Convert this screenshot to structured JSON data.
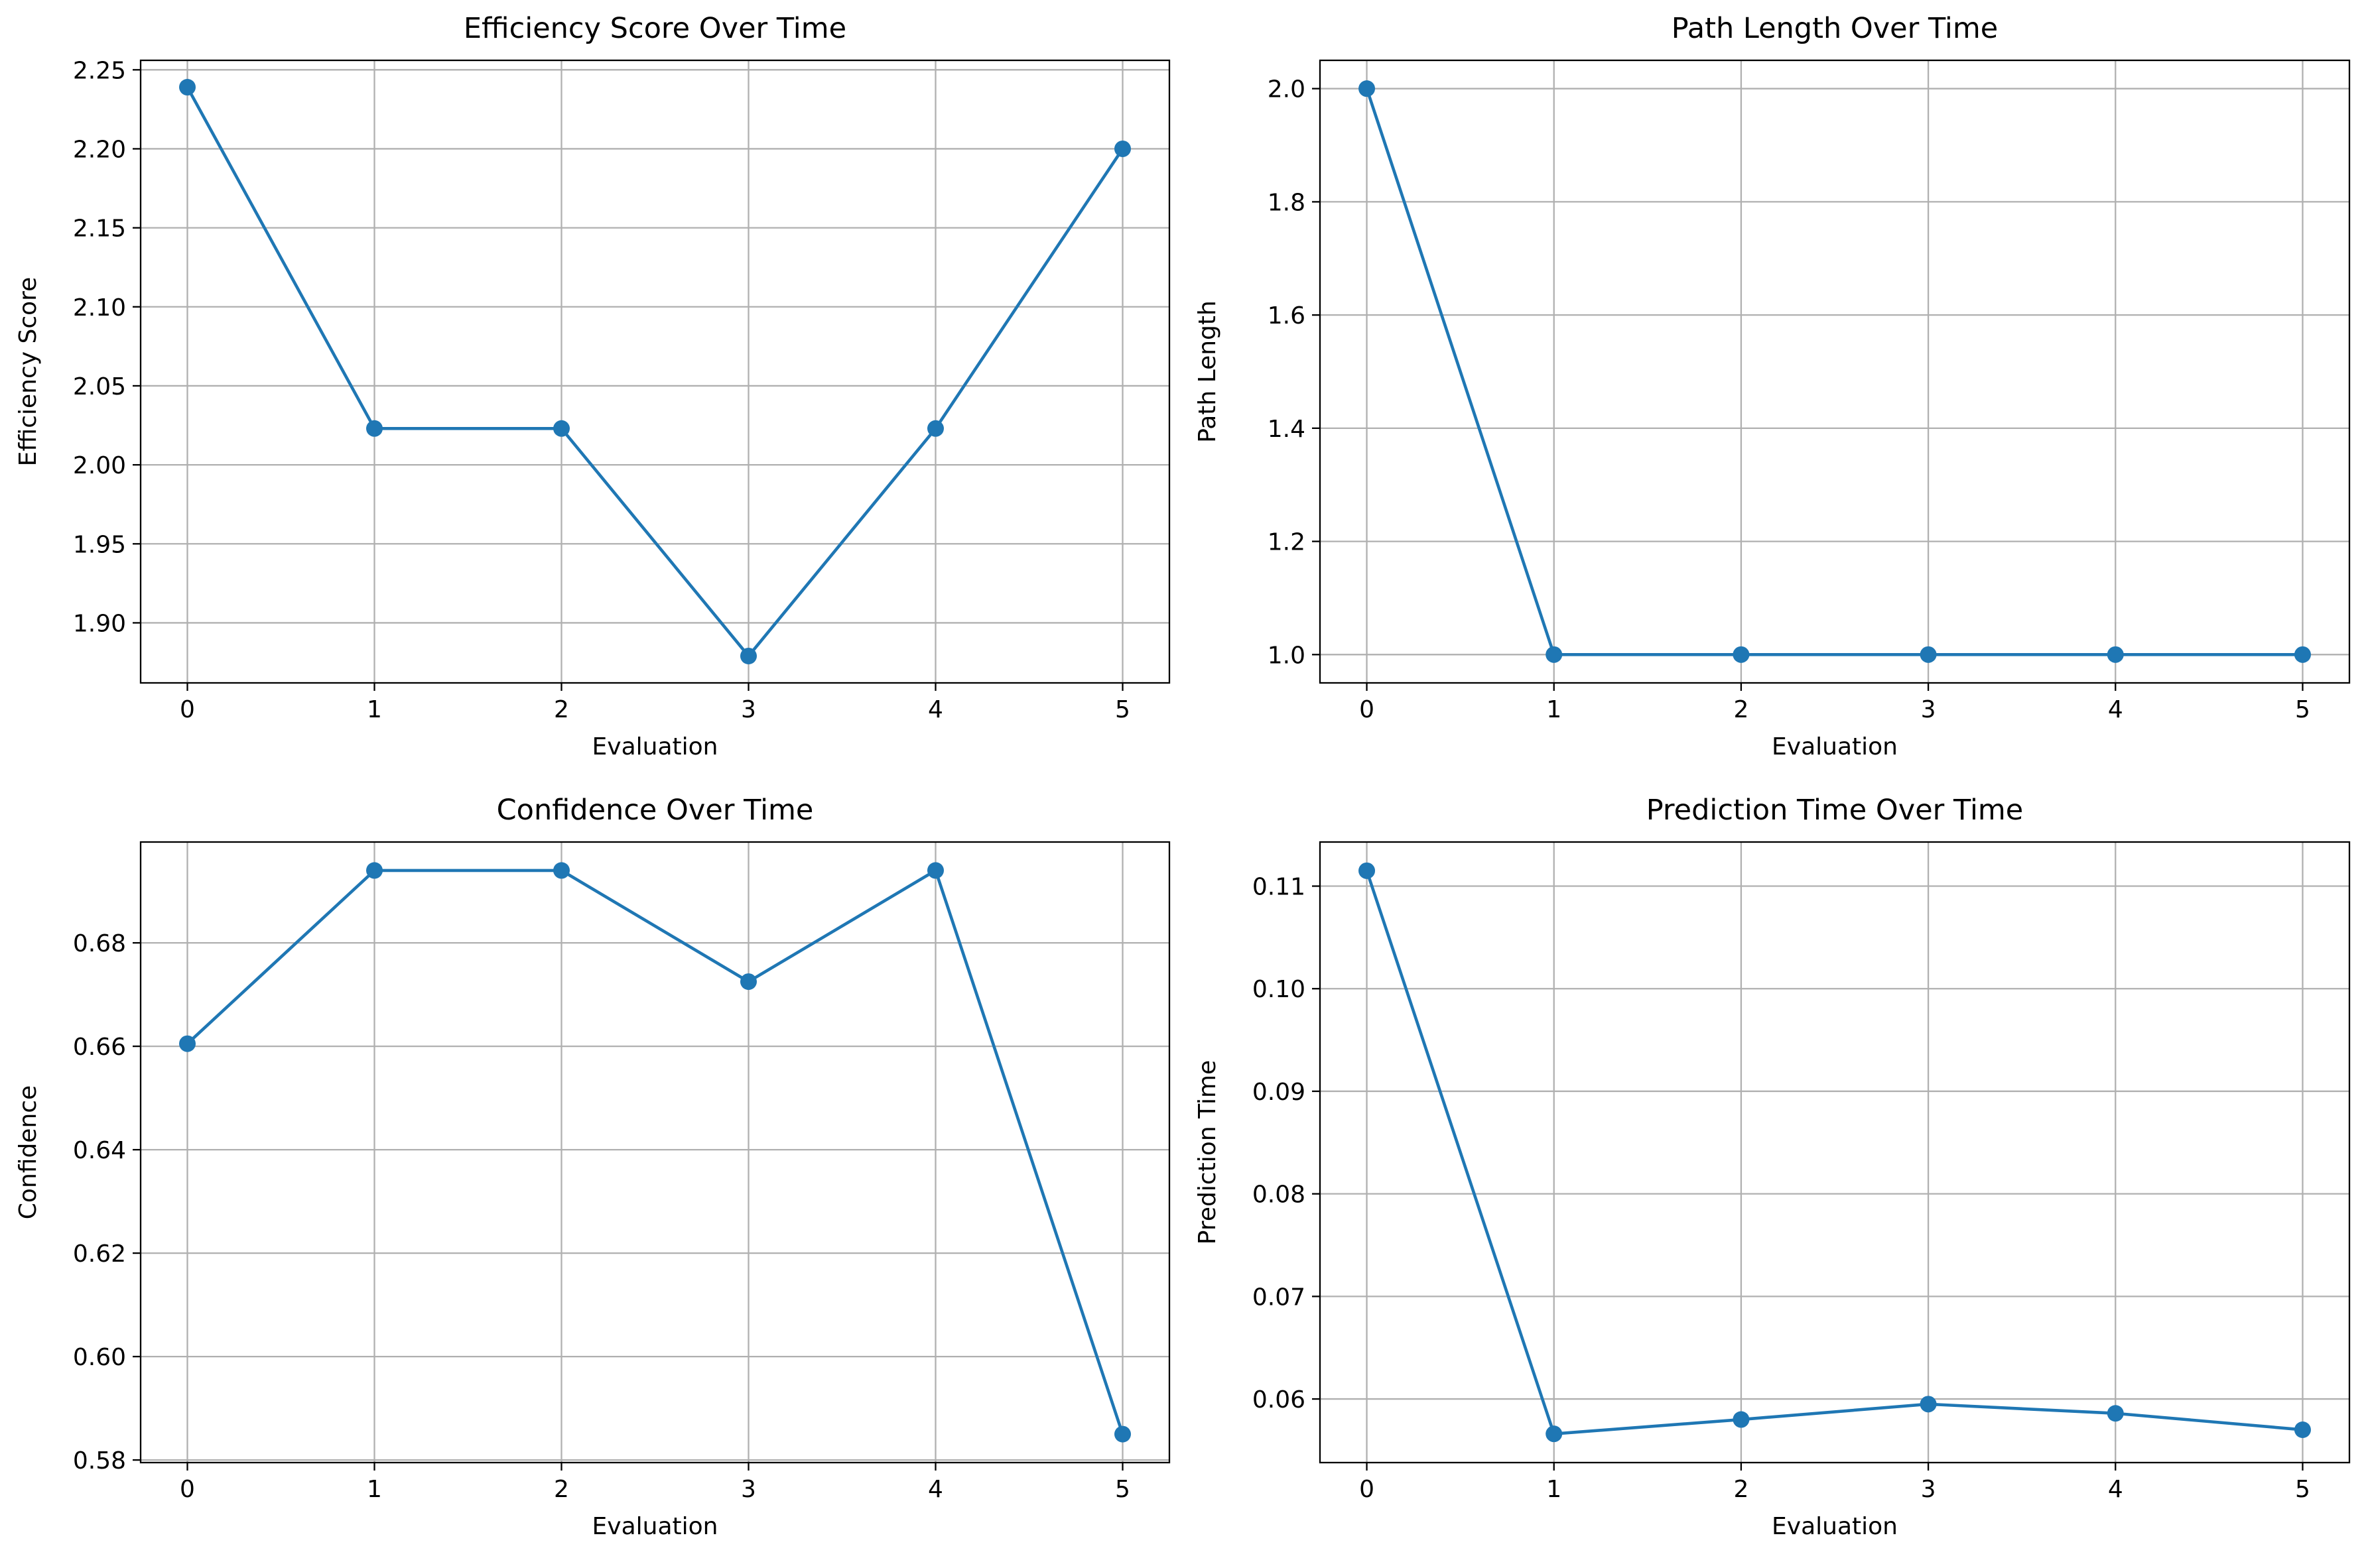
{
  "colors": {
    "series": "#1f77b4",
    "grid": "#b0b0b0",
    "axes": "#000000"
  },
  "chart_data": [
    {
      "type": "line",
      "title": "Efficiency Score Over Time",
      "xlabel": "Evaluation",
      "ylabel": "Efficiency Score",
      "x": [
        0,
        1,
        2,
        3,
        4,
        5
      ],
      "values": [
        2.239,
        2.023,
        2.023,
        1.879,
        2.023,
        2.2
      ],
      "xlim": [
        -0.25,
        5.25
      ],
      "ylim": [
        1.862,
        2.256
      ],
      "xticks": [
        0,
        1,
        2,
        3,
        4,
        5
      ],
      "xtick_labels": [
        "0",
        "1",
        "2",
        "3",
        "4",
        "5"
      ],
      "yticks": [
        1.9,
        1.95,
        2.0,
        2.05,
        2.1,
        2.15,
        2.2,
        2.25
      ],
      "ytick_labels": [
        "1.90",
        "1.95",
        "2.00",
        "2.05",
        "2.10",
        "2.15",
        "2.20",
        "2.25"
      ],
      "grid": true,
      "marker": "circle"
    },
    {
      "type": "line",
      "title": "Path Length Over Time",
      "xlabel": "Evaluation",
      "ylabel": "Path Length",
      "x": [
        0,
        1,
        2,
        3,
        4,
        5
      ],
      "values": [
        2.0,
        1.0,
        1.0,
        1.0,
        1.0,
        1.0
      ],
      "xlim": [
        -0.25,
        5.25
      ],
      "ylim": [
        0.95,
        2.05
      ],
      "xticks": [
        0,
        1,
        2,
        3,
        4,
        5
      ],
      "xtick_labels": [
        "0",
        "1",
        "2",
        "3",
        "4",
        "5"
      ],
      "yticks": [
        1.0,
        1.2,
        1.4,
        1.6,
        1.8,
        2.0
      ],
      "ytick_labels": [
        "1.0",
        "1.2",
        "1.4",
        "1.6",
        "1.8",
        "2.0"
      ],
      "grid": true,
      "marker": "circle"
    },
    {
      "type": "line",
      "title": "Confidence Over Time",
      "xlabel": "Evaluation",
      "ylabel": "Confidence",
      "x": [
        0,
        1,
        2,
        3,
        4,
        5
      ],
      "values": [
        0.6605,
        0.694,
        0.694,
        0.6725,
        0.694,
        0.585
      ],
      "xlim": [
        -0.25,
        5.25
      ],
      "ylim": [
        0.5795,
        0.6995
      ],
      "xticks": [
        0,
        1,
        2,
        3,
        4,
        5
      ],
      "xtick_labels": [
        "0",
        "1",
        "2",
        "3",
        "4",
        "5"
      ],
      "yticks": [
        0.58,
        0.6,
        0.62,
        0.64,
        0.66,
        0.68
      ],
      "ytick_labels": [
        "0.58",
        "0.60",
        "0.62",
        "0.64",
        "0.66",
        "0.68"
      ],
      "grid": true,
      "marker": "circle"
    },
    {
      "type": "line",
      "title": "Prediction Time Over Time",
      "xlabel": "Evaluation",
      "ylabel": "Prediction Time",
      "x": [
        0,
        1,
        2,
        3,
        4,
        5
      ],
      "values": [
        0.1115,
        0.0566,
        0.058,
        0.0595,
        0.0586,
        0.057
      ],
      "xlim": [
        -0.25,
        5.25
      ],
      "ylim": [
        0.0538,
        0.1143
      ],
      "xticks": [
        0,
        1,
        2,
        3,
        4,
        5
      ],
      "xtick_labels": [
        "0",
        "1",
        "2",
        "3",
        "4",
        "5"
      ],
      "yticks": [
        0.06,
        0.07,
        0.08,
        0.09,
        0.1,
        0.11
      ],
      "ytick_labels": [
        "0.06",
        "0.07",
        "0.08",
        "0.09",
        "0.10",
        "0.11"
      ],
      "grid": true,
      "marker": "circle"
    }
  ]
}
